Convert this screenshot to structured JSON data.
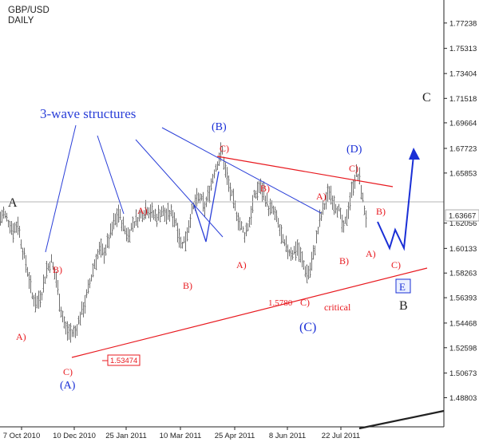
{
  "chart_data": {
    "type": "bar",
    "subtype": "ohlc",
    "symbol": "GBP/USD",
    "timeframe": "DAILY",
    "x_ticks": [
      "7 Oct 2010",
      "10 Dec 2010",
      "25 Jan 2011",
      "10 Mar 2011",
      "25 Apr 2011",
      "8 Jun 2011",
      "22 Jul 2011"
    ],
    "y_ticks": [
      "1.77238",
      "1.75313",
      "1.73404",
      "1.71518",
      "1.69664",
      "1.67723",
      "1.65853",
      "1.63667",
      "1.62056",
      "1.60133",
      "1.58263",
      "1.56393",
      "1.54468",
      "1.52598",
      "1.50673",
      "1.48803"
    ],
    "ylim": [
      1.475,
      1.785
    ],
    "current_price": "1.63667",
    "price_path": [
      [
        0,
        1.624
      ],
      [
        4,
        1.628
      ],
      [
        10,
        1.622
      ],
      [
        16,
        1.615
      ],
      [
        22,
        1.62
      ],
      [
        28,
        1.6
      ],
      [
        34,
        1.585
      ],
      [
        40,
        1.565
      ],
      [
        46,
        1.56
      ],
      [
        52,
        1.568
      ],
      [
        58,
        1.585
      ],
      [
        64,
        1.592
      ],
      [
        70,
        1.578
      ],
      [
        76,
        1.555
      ],
      [
        82,
        1.54
      ],
      [
        88,
        1.537
      ],
      [
        94,
        1.538
      ],
      [
        100,
        1.55
      ],
      [
        106,
        1.56
      ],
      [
        112,
        1.575
      ],
      [
        118,
        1.59
      ],
      [
        124,
        1.6
      ],
      [
        130,
        1.598
      ],
      [
        136,
        1.608
      ],
      [
        142,
        1.62
      ],
      [
        148,
        1.628
      ],
      [
        154,
        1.618
      ],
      [
        160,
        1.611
      ],
      [
        166,
        1.62
      ],
      [
        172,
        1.624
      ],
      [
        178,
        1.628
      ],
      [
        184,
        1.632
      ],
      [
        190,
        1.628
      ],
      [
        196,
        1.625
      ],
      [
        202,
        1.63
      ],
      [
        208,
        1.626
      ],
      [
        214,
        1.628
      ],
      [
        220,
        1.622
      ],
      [
        226,
        1.605
      ],
      [
        232,
        1.608
      ],
      [
        238,
        1.625
      ],
      [
        244,
        1.636
      ],
      [
        250,
        1.64
      ],
      [
        256,
        1.632
      ],
      [
        262,
        1.645
      ],
      [
        268,
        1.66
      ],
      [
        274,
        1.67
      ],
      [
        278,
        1.675
      ],
      [
        282,
        1.66
      ],
      [
        288,
        1.645
      ],
      [
        294,
        1.632
      ],
      [
        300,
        1.62
      ],
      [
        306,
        1.612
      ],
      [
        312,
        1.622
      ],
      [
        318,
        1.64
      ],
      [
        324,
        1.648
      ],
      [
        330,
        1.644
      ],
      [
        336,
        1.632
      ],
      [
        342,
        1.63
      ],
      [
        348,
        1.62
      ],
      [
        354,
        1.606
      ],
      [
        360,
        1.6
      ],
      [
        366,
        1.598
      ],
      [
        372,
        1.602
      ],
      [
        378,
        1.592
      ],
      [
        384,
        1.582
      ],
      [
        388,
        1.585
      ],
      [
        394,
        1.602
      ],
      [
        400,
        1.622
      ],
      [
        406,
        1.634
      ],
      [
        412,
        1.645
      ],
      [
        418,
        1.636
      ],
      [
        424,
        1.63
      ],
      [
        430,
        1.615
      ],
      [
        436,
        1.632
      ],
      [
        442,
        1.65
      ],
      [
        446,
        1.658
      ],
      [
        450,
        1.654
      ],
      [
        454,
        1.638
      ],
      [
        458,
        1.625
      ]
    ],
    "wave_letters": [
      {
        "text": "A",
        "color": "#222222"
      },
      {
        "text": "B",
        "color": "#222222"
      },
      {
        "text": "C",
        "color": "#222222"
      }
    ],
    "wave_labels": [
      {
        "text": "A)",
        "color": "#e8191f"
      },
      {
        "text": "B)",
        "color": "#e8191f"
      },
      {
        "text": "C)",
        "color": "#e8191f"
      },
      {
        "text": "A)",
        "color": "#e8191f"
      },
      {
        "text": "B)",
        "color": "#e8191f"
      },
      {
        "text": "C)",
        "color": "#e8191f"
      },
      {
        "text": "A)",
        "color": "#e8191f"
      },
      {
        "text": "B)",
        "color": "#e8191f"
      },
      {
        "text": "C)",
        "color": "#e8191f"
      },
      {
        "text": "A)",
        "color": "#e8191f"
      },
      {
        "text": "B)",
        "color": "#e8191f"
      },
      {
        "text": "C)",
        "color": "#e8191f"
      },
      {
        "text": "A)",
        "color": "#e8191f"
      },
      {
        "text": "B)",
        "color": "#e8191f"
      },
      {
        "text": "C)",
        "color": "#e8191f"
      },
      {
        "text": "(A)",
        "color": "#1a2fd6"
      },
      {
        "text": "(B)",
        "color": "#1a2fd6"
      },
      {
        "text": "(C)",
        "color": "#1a2fd6"
      },
      {
        "text": "(D)",
        "color": "#1a2fd6"
      },
      {
        "text": "E",
        "color": "#1a2fd6"
      }
    ],
    "annotations": {
      "structures_note": "3-wave structures",
      "level_1578": "1.5780",
      "level_153474": "1.53474",
      "critical_note": "critical"
    },
    "colors": {
      "bars": "#6f6f6f",
      "upper_trendline": "#e8191f",
      "lower_trendline": "#e8191f",
      "blue_lines": "#2a3fd8",
      "axis": "#222222",
      "current_price_line": "#b5b5b5"
    },
    "grid": false
  }
}
